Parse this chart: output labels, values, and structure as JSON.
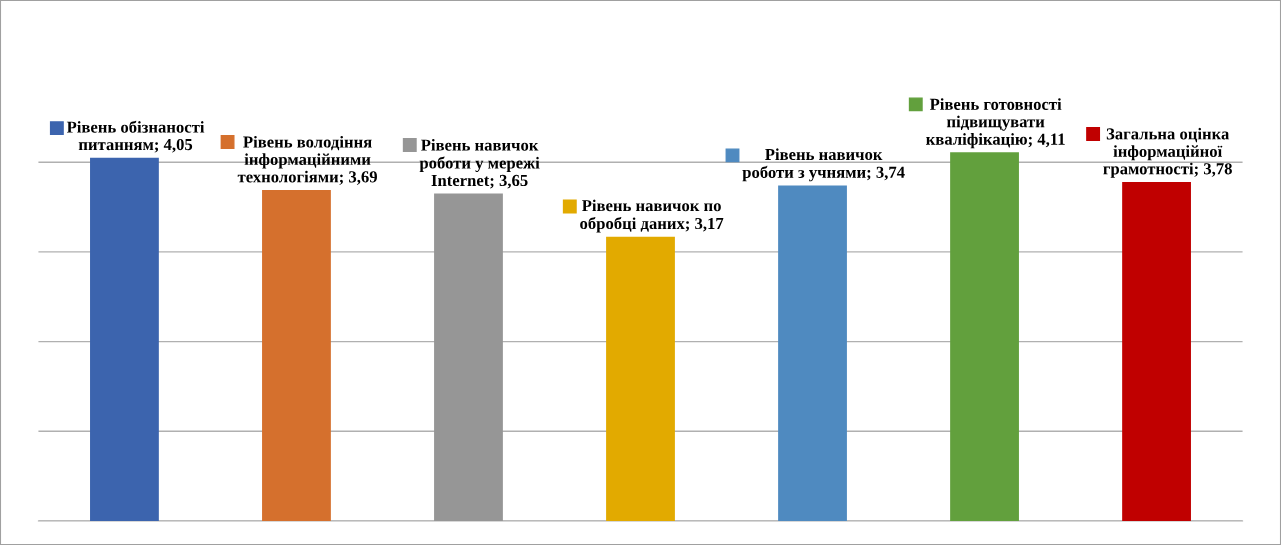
{
  "chart_data": {
    "type": "bar",
    "categories": [
      null,
      null,
      null,
      null,
      null,
      null,
      null
    ],
    "values": [
      4.05,
      3.69,
      3.65,
      3.17,
      3.74,
      4.11,
      3.78
    ],
    "colors": [
      "#3c64ae",
      "#d5702d",
      "#969696",
      "#e2aa00",
      "#4f8ac0",
      "#62a03d",
      "#c00000"
    ],
    "value_labels": [
      "Рівень обізнаності\nпитанням; 4,05",
      "Рівень володіння\nінформаційними\nтехнологіями; 3,69",
      "Рівень навичок\nроботи у мережі\nInternet; 3,65",
      "Рівень навичок по\nобробці даних; 3,17",
      "Рівень навичок\nроботи з учнями; 3,74",
      "Рівень готовності\nпідвищувати\nкваліфікацію; 4,11",
      "Загальна оцінка\nінформаційної\nграмотності; 3,78"
    ],
    "yticks": [
      {
        "value": 0,
        "label": null
      },
      {
        "value": 1,
        "label": null
      },
      {
        "value": 2,
        "label": null
      },
      {
        "value": 3,
        "label": null
      },
      {
        "value": 4,
        "label": null
      }
    ],
    "grid": "y",
    "legend": false
  }
}
